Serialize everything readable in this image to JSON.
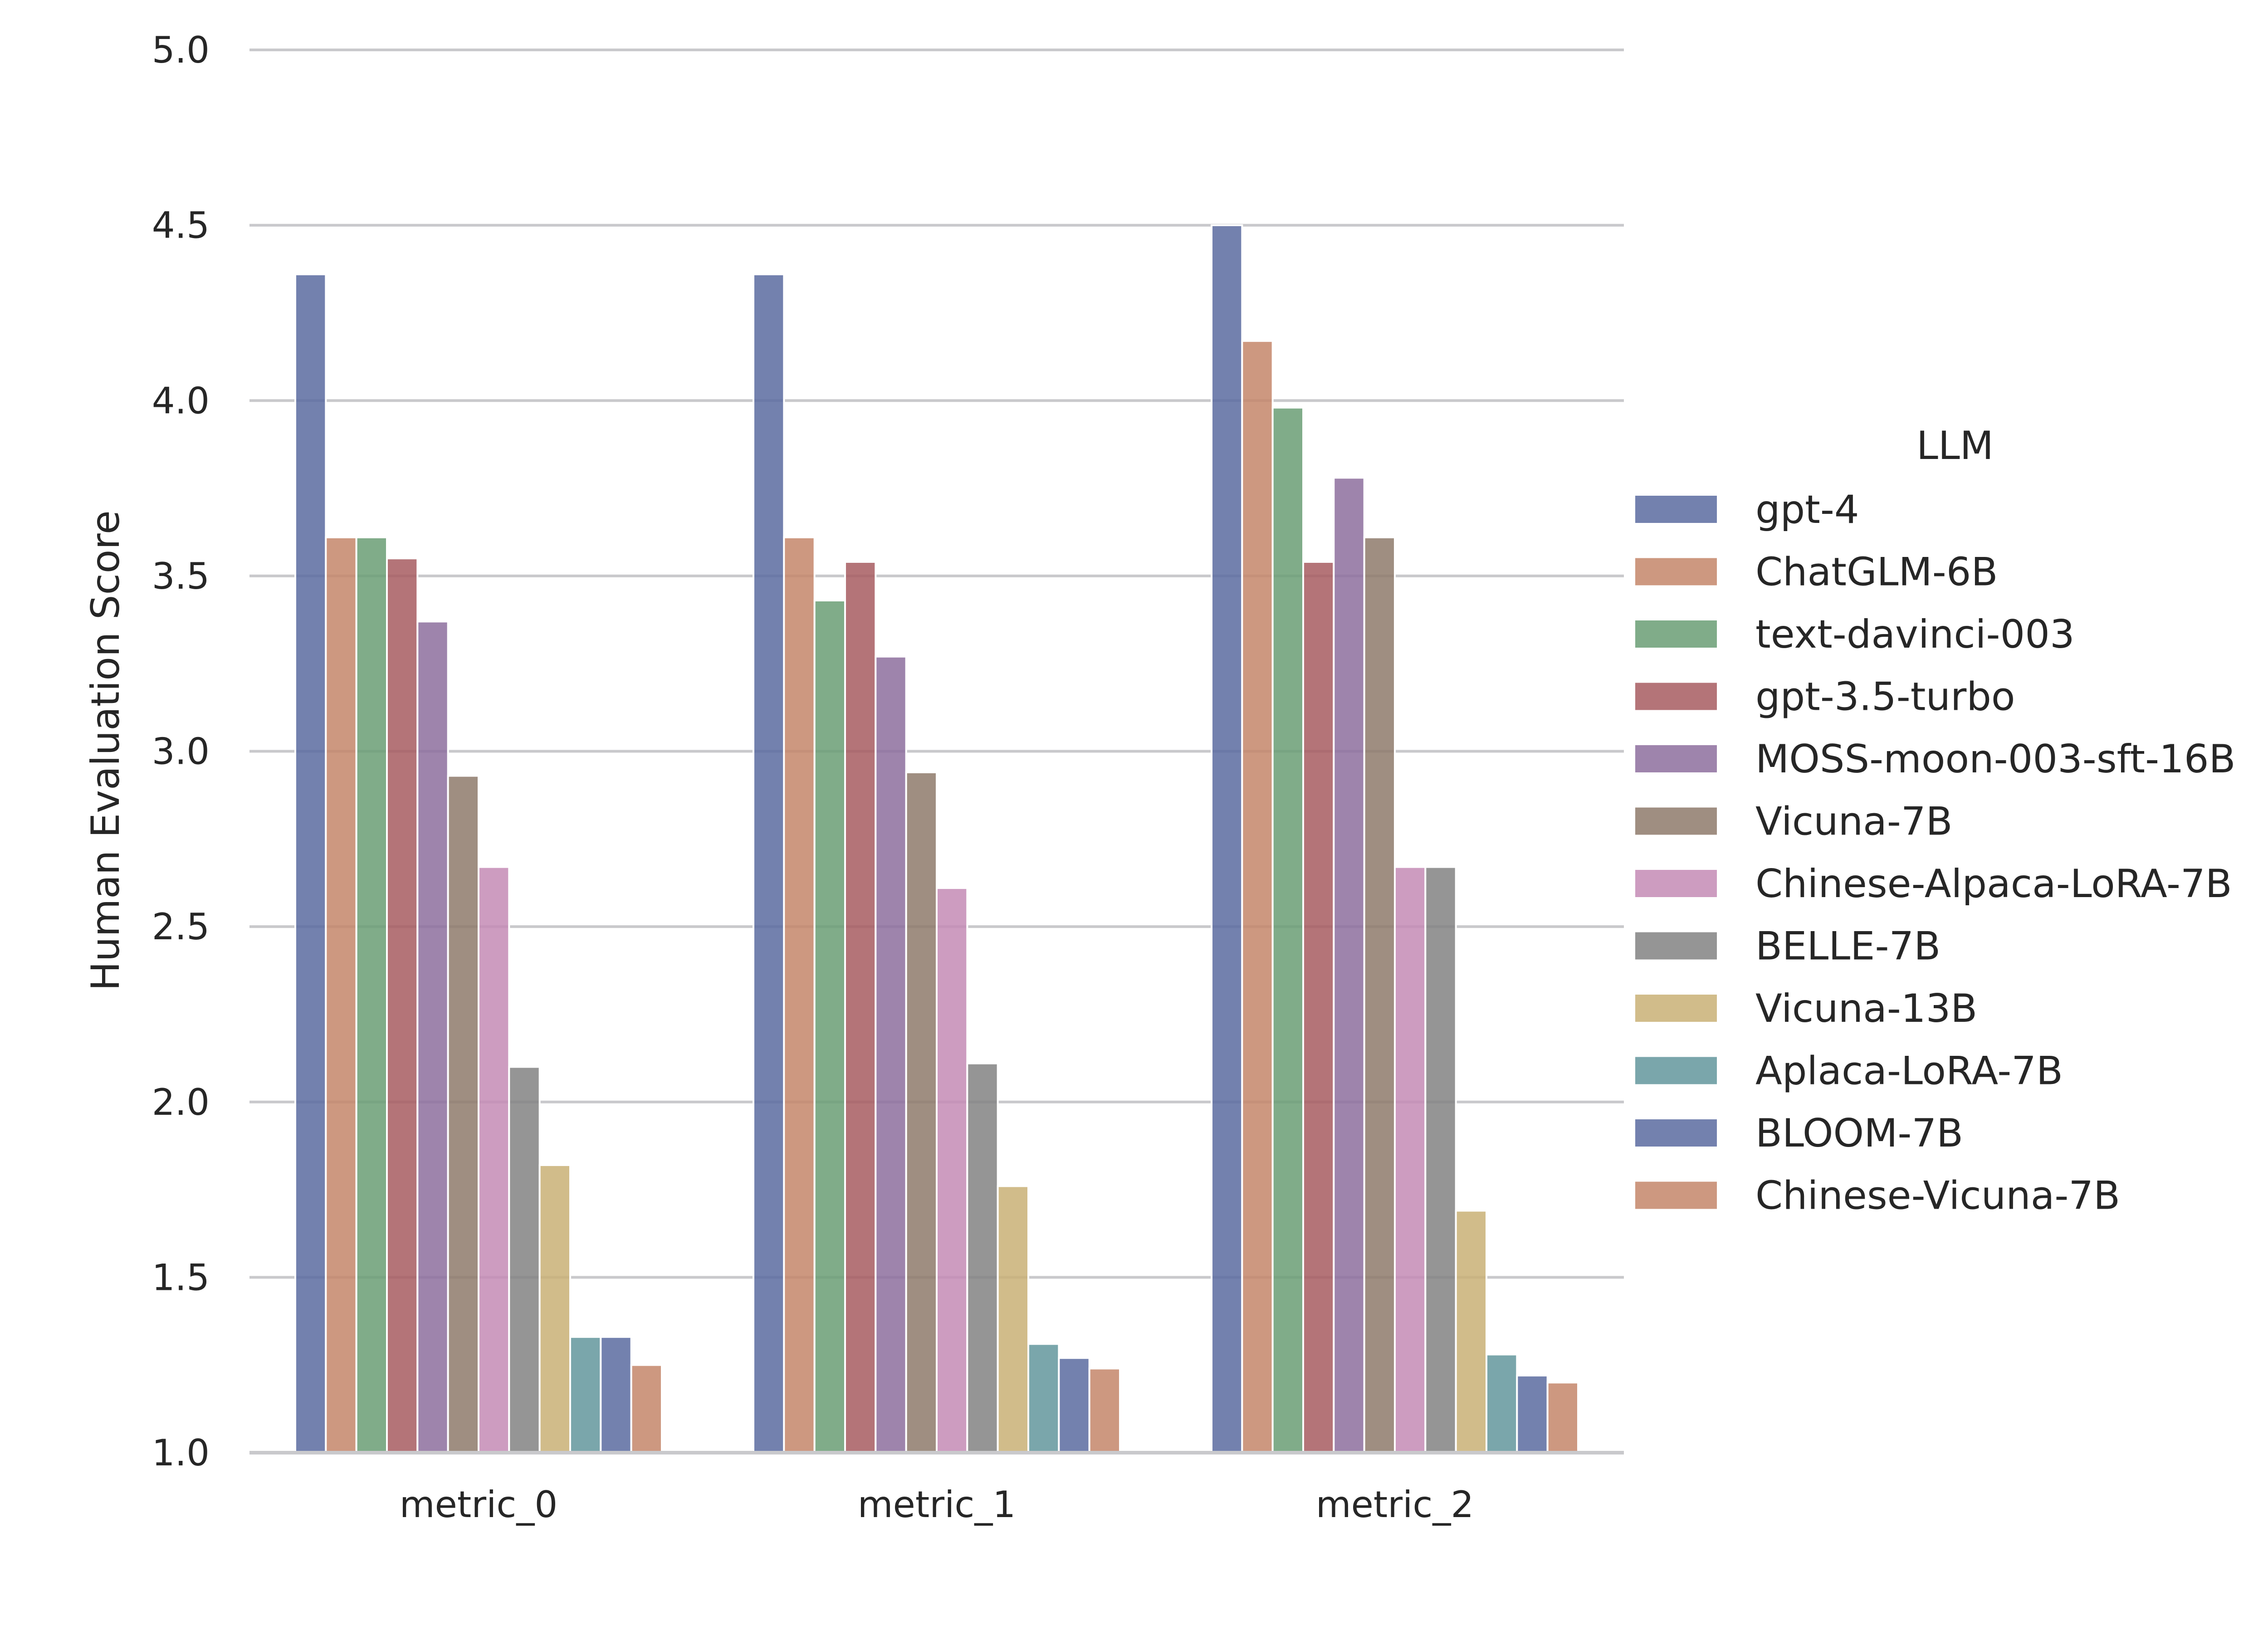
{
  "chart_data": {
    "type": "bar",
    "title": "",
    "xlabel": "",
    "ylabel": "Human Evaluation Score",
    "ylim": [
      1.0,
      5.0
    ],
    "yticks": [
      "1.0",
      "1.5",
      "2.0",
      "2.5",
      "3.0",
      "3.5",
      "4.0",
      "4.5",
      "5.0"
    ],
    "grid": "horizontal",
    "legend": {
      "title": "LLM",
      "placement": "right"
    },
    "categories": [
      "metric_0",
      "metric_1",
      "metric_2"
    ],
    "series": [
      {
        "name": "gpt-4",
        "color": "#5a6ba0",
        "values": [
          4.36,
          4.36,
          4.5
        ]
      },
      {
        "name": "ChatGLM-6B",
        "color": "#c4866a",
        "values": [
          3.61,
          3.61,
          4.17
        ]
      },
      {
        "name": "text-davinci-003",
        "color": "#6a9e74",
        "values": [
          3.61,
          3.43,
          3.98
        ]
      },
      {
        "name": "gpt-3.5-turbo",
        "color": "#a75c60",
        "values": [
          3.55,
          3.54,
          3.54
        ]
      },
      {
        "name": "MOSS-moon-003-sft-16B",
        "color": "#8d6f9e",
        "values": [
          3.37,
          3.27,
          3.78
        ]
      },
      {
        "name": "Vicuna-7B",
        "color": "#8e7a6b",
        "values": [
          2.93,
          2.94,
          3.61
        ]
      },
      {
        "name": "Chinese-Alpaca-LoRA-7B",
        "color": "#c48bb5",
        "values": [
          2.67,
          2.61,
          2.67
        ]
      },
      {
        "name": "BELLE-7B",
        "color": "#828282",
        "values": [
          2.1,
          2.11,
          2.67
        ]
      },
      {
        "name": "Vicuna-13B",
        "color": "#c9b075",
        "values": [
          1.82,
          1.76,
          1.69
        ]
      },
      {
        "name": "Aplaca-LoRA-7B",
        "color": "#63979c",
        "values": [
          1.33,
          1.31,
          1.28
        ]
      },
      {
        "name": "BLOOM-7B",
        "color": "#5a6ba0",
        "values": [
          1.33,
          1.27,
          1.22
        ]
      },
      {
        "name": "Chinese-Vicuna-7B",
        "color": "#c4866a",
        "values": [
          1.25,
          1.24,
          1.2
        ]
      }
    ]
  }
}
